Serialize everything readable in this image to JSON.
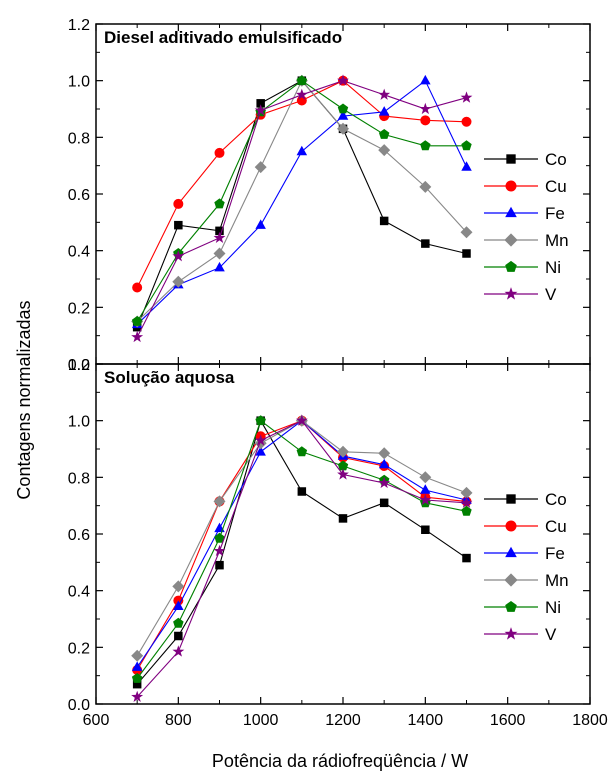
{
  "figure": {
    "ylabel": "Contagens normalizadas",
    "xlabel": "Potência da rádiofreqüência / W"
  },
  "marker_colors": {
    "Co": "#000000",
    "Cu": "#ff0000",
    "Fe": "#0000ff",
    "Mn": "#888888",
    "Ni": "#008000",
    "V": "#800080"
  },
  "chart_data": [
    {
      "type": "line",
      "title": "Diesel aditivado emulsificado",
      "xlim": [
        600,
        1800
      ],
      "ylim": [
        0.0,
        1.2
      ],
      "xticks": [
        600,
        800,
        1000,
        1200,
        1400,
        1600,
        1800
      ],
      "yticks": [
        "0.0",
        "0.2",
        "0.4",
        "0.6",
        "0.8",
        "1.0",
        "1.2"
      ],
      "x": [
        700,
        800,
        900,
        1000,
        1100,
        1200,
        1300,
        1400,
        1500
      ],
      "legend_position": "right",
      "series": [
        {
          "name": "Co",
          "marker": "square",
          "values": [
            0.13,
            0.49,
            0.47,
            0.92,
            1.0,
            0.83,
            0.505,
            0.425,
            0.39
          ]
        },
        {
          "name": "Cu",
          "marker": "circle",
          "values": [
            0.27,
            0.565,
            0.745,
            0.88,
            0.93,
            1.0,
            0.875,
            0.86,
            0.855
          ]
        },
        {
          "name": "Fe",
          "marker": "triangle",
          "values": [
            0.14,
            0.28,
            0.34,
            0.49,
            0.75,
            0.875,
            0.89,
            1.0,
            0.695
          ]
        },
        {
          "name": "Mn",
          "marker": "diamond",
          "values": [
            0.15,
            0.29,
            0.39,
            0.695,
            1.0,
            0.83,
            0.755,
            0.625,
            0.465
          ]
        },
        {
          "name": "Ni",
          "marker": "pentagon",
          "values": [
            0.15,
            0.39,
            0.565,
            0.89,
            1.0,
            0.9,
            0.81,
            0.77,
            0.77
          ]
        },
        {
          "name": "V",
          "marker": "star",
          "values": [
            0.095,
            0.38,
            0.445,
            0.895,
            0.95,
            1.0,
            0.95,
            0.9,
            0.94
          ]
        }
      ]
    },
    {
      "type": "line",
      "title": "Solução aquosa",
      "xlim": [
        600,
        1800
      ],
      "ylim": [
        0.0,
        1.2
      ],
      "xticks": [
        600,
        800,
        1000,
        1200,
        1400,
        1600,
        1800
      ],
      "yticks": [
        "0.0",
        "0.2",
        "0.4",
        "0.6",
        "0.8",
        "1.0",
        "1.2"
      ],
      "x": [
        700,
        800,
        900,
        1000,
        1100,
        1200,
        1300,
        1400,
        1500
      ],
      "legend_position": "right",
      "series": [
        {
          "name": "Co",
          "marker": "square",
          "values": [
            0.07,
            0.24,
            0.49,
            1.0,
            0.75,
            0.655,
            0.71,
            0.615,
            0.515
          ]
        },
        {
          "name": "Cu",
          "marker": "circle",
          "values": [
            0.12,
            0.365,
            0.715,
            0.945,
            1.0,
            0.87,
            0.84,
            0.73,
            0.715
          ]
        },
        {
          "name": "Fe",
          "marker": "triangle",
          "values": [
            0.13,
            0.345,
            0.62,
            0.89,
            1.0,
            0.875,
            0.845,
            0.755,
            0.72
          ]
        },
        {
          "name": "Mn",
          "marker": "diamond",
          "values": [
            0.17,
            0.415,
            0.715,
            0.92,
            1.0,
            0.89,
            0.885,
            0.8,
            0.745
          ]
        },
        {
          "name": "Ni",
          "marker": "pentagon",
          "values": [
            0.09,
            0.285,
            0.585,
            1.0,
            0.89,
            0.84,
            0.79,
            0.71,
            0.68
          ]
        },
        {
          "name": "V",
          "marker": "star",
          "values": [
            0.025,
            0.185,
            0.54,
            0.93,
            1.0,
            0.81,
            0.78,
            0.72,
            0.71
          ]
        }
      ]
    }
  ]
}
